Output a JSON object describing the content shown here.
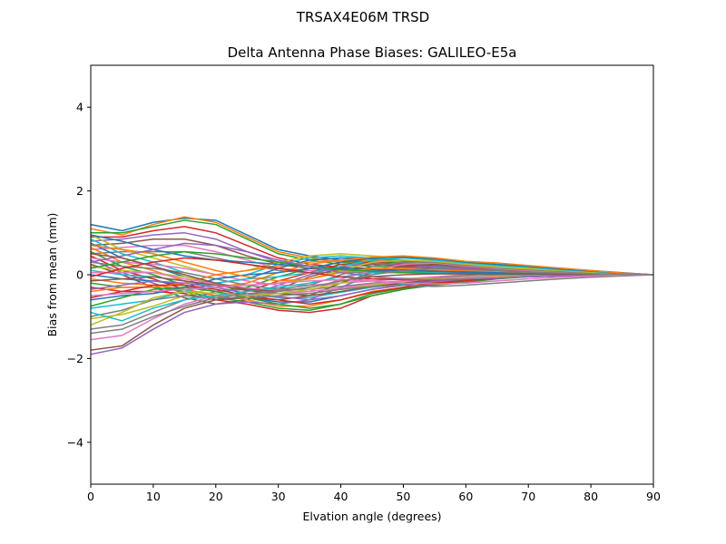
{
  "chart_data": {
    "type": "line",
    "suptitle": "TRSAX4E06M      TRSD",
    "title": "Delta Antenna Phase Biases: GALILEO-E5a",
    "xlabel": "Elvation angle (degrees)",
    "ylabel": "Bias from mean (mm)",
    "xlim": [
      0,
      90
    ],
    "ylim": [
      -5,
      5
    ],
    "xticks": [
      0,
      10,
      20,
      30,
      40,
      50,
      60,
      70,
      80,
      90
    ],
    "yticks": [
      -4,
      -2,
      0,
      2,
      4
    ],
    "ytick_labels": [
      "−4",
      "−2",
      "0",
      "2",
      "4"
    ],
    "grid": false,
    "legend": "none",
    "colors": [
      "#1f77b4",
      "#ff7f0e",
      "#2ca02c",
      "#d62728",
      "#9467bd",
      "#8c564b",
      "#e377c2",
      "#7f7f7f",
      "#bcbd22",
      "#17becf"
    ],
    "x": [
      0,
      5,
      10,
      15,
      20,
      25,
      30,
      35,
      40,
      45,
      50,
      55,
      60,
      65,
      70,
      75,
      80,
      85,
      90
    ],
    "series": [
      {
        "values": [
          1.2,
          1.05,
          1.25,
          1.35,
          1.3,
          0.95,
          0.6,
          0.45,
          0.35,
          0.3,
          0.25,
          0.2,
          0.15,
          0.2,
          0.2,
          0.15,
          0.1,
          0.05,
          0.0
        ]
      },
      {
        "values": [
          1.1,
          0.95,
          1.2,
          1.38,
          1.25,
          0.9,
          0.55,
          0.4,
          0.3,
          0.28,
          0.22,
          0.18,
          0.15,
          0.18,
          0.15,
          0.12,
          0.08,
          0.04,
          0.0
        ]
      },
      {
        "values": [
          1.0,
          1.0,
          1.15,
          1.3,
          1.2,
          0.85,
          0.5,
          0.35,
          0.25,
          0.2,
          0.18,
          0.15,
          0.12,
          0.15,
          0.15,
          0.1,
          0.08,
          0.03,
          0.0
        ]
      },
      {
        "values": [
          0.9,
          0.9,
          1.05,
          1.15,
          1.0,
          0.7,
          0.4,
          0.25,
          0.18,
          0.15,
          0.12,
          0.1,
          0.1,
          0.12,
          0.12,
          0.08,
          0.05,
          0.02,
          0.0
        ]
      },
      {
        "values": [
          0.8,
          0.85,
          0.95,
          1.0,
          0.85,
          0.55,
          0.3,
          0.2,
          0.15,
          0.12,
          0.1,
          0.08,
          0.08,
          0.1,
          0.1,
          0.07,
          0.05,
          0.02,
          0.0
        ]
      },
      {
        "values": [
          0.7,
          0.75,
          0.85,
          0.85,
          0.7,
          0.45,
          0.25,
          0.15,
          0.1,
          0.1,
          0.08,
          0.06,
          0.06,
          0.08,
          0.08,
          0.06,
          0.04,
          0.02,
          0.0
        ]
      },
      {
        "values": [
          0.6,
          0.65,
          0.7,
          0.7,
          0.55,
          0.35,
          0.15,
          0.1,
          0.08,
          0.08,
          0.06,
          0.05,
          0.05,
          0.06,
          0.06,
          0.05,
          0.03,
          0.01,
          0.0
        ]
      },
      {
        "values": [
          0.5,
          0.55,
          0.55,
          0.55,
          0.4,
          0.25,
          0.1,
          0.05,
          0.05,
          0.05,
          0.05,
          0.04,
          0.04,
          0.05,
          0.05,
          0.04,
          0.03,
          0.01,
          0.0
        ]
      },
      {
        "values": [
          0.95,
          0.6,
          0.4,
          0.2,
          0.0,
          0.1,
          0.3,
          0.45,
          0.5,
          0.45,
          0.4,
          0.35,
          0.25,
          0.2,
          0.15,
          0.1,
          0.08,
          0.03,
          0.0
        ]
      },
      {
        "values": [
          0.85,
          0.5,
          0.3,
          0.05,
          -0.1,
          0.0,
          0.25,
          0.4,
          0.45,
          0.4,
          0.35,
          0.3,
          0.22,
          0.18,
          0.12,
          0.08,
          0.06,
          0.02,
          0.0
        ]
      },
      {
        "values": [
          0.75,
          0.4,
          0.2,
          -0.05,
          -0.2,
          -0.1,
          0.15,
          0.35,
          0.4,
          0.38,
          0.32,
          0.28,
          0.2,
          0.15,
          0.1,
          0.07,
          0.05,
          0.02,
          0.0
        ]
      },
      {
        "values": [
          0.65,
          0.3,
          0.1,
          -0.15,
          -0.3,
          -0.2,
          0.05,
          0.25,
          0.35,
          0.35,
          0.3,
          0.25,
          0.18,
          0.12,
          0.08,
          0.06,
          0.04,
          0.02,
          0.0
        ]
      },
      {
        "values": [
          0.55,
          0.2,
          0.0,
          -0.25,
          -0.4,
          -0.3,
          -0.05,
          0.15,
          0.3,
          0.32,
          0.28,
          0.22,
          0.15,
          0.1,
          0.07,
          0.05,
          0.04,
          0.01,
          0.0
        ]
      },
      {
        "values": [
          0.45,
          0.1,
          -0.1,
          -0.35,
          -0.5,
          -0.4,
          -0.15,
          0.05,
          0.25,
          0.3,
          0.25,
          0.2,
          0.12,
          0.08,
          0.06,
          0.04,
          0.03,
          0.01,
          0.0
        ]
      },
      {
        "values": [
          0.35,
          0.05,
          -0.2,
          -0.45,
          -0.6,
          -0.5,
          -0.25,
          0.0,
          0.2,
          0.28,
          0.22,
          0.18,
          0.1,
          0.06,
          0.05,
          0.04,
          0.02,
          0.01,
          0.0
        ]
      },
      {
        "values": [
          0.25,
          0.0,
          -0.3,
          -0.55,
          -0.7,
          -0.6,
          -0.35,
          -0.05,
          0.15,
          0.25,
          0.2,
          0.15,
          0.08,
          0.05,
          0.04,
          0.03,
          0.02,
          0.01,
          0.0
        ]
      },
      {
        "values": [
          0.4,
          0.3,
          0.25,
          0.15,
          0.0,
          -0.15,
          -0.25,
          -0.25,
          -0.2,
          -0.15,
          -0.1,
          -0.05,
          0.0,
          0.05,
          0.08,
          0.06,
          0.04,
          0.02,
          0.0
        ]
      },
      {
        "values": [
          0.3,
          0.2,
          0.15,
          0.05,
          -0.1,
          -0.25,
          -0.35,
          -0.35,
          -0.28,
          -0.2,
          -0.15,
          -0.08,
          -0.02,
          0.03,
          0.06,
          0.05,
          0.03,
          0.01,
          0.0
        ]
      },
      {
        "values": [
          0.2,
          0.1,
          0.05,
          -0.05,
          -0.2,
          -0.35,
          -0.45,
          -0.45,
          -0.35,
          -0.25,
          -0.18,
          -0.1,
          -0.05,
          0.02,
          0.05,
          0.04,
          0.03,
          0.01,
          0.0
        ]
      },
      {
        "values": [
          0.1,
          0.0,
          -0.05,
          -0.15,
          -0.3,
          -0.45,
          -0.55,
          -0.55,
          -0.42,
          -0.3,
          -0.22,
          -0.12,
          -0.06,
          0.0,
          0.04,
          0.03,
          0.02,
          0.01,
          0.0
        ]
      },
      {
        "values": [
          0.0,
          -0.1,
          -0.15,
          -0.25,
          -0.4,
          -0.55,
          -0.65,
          -0.65,
          -0.5,
          -0.35,
          -0.25,
          -0.15,
          -0.08,
          -0.02,
          0.02,
          0.02,
          0.02,
          0.01,
          0.0
        ]
      },
      {
        "values": [
          -0.1,
          -0.2,
          -0.25,
          -0.35,
          -0.5,
          -0.6,
          -0.75,
          -0.75,
          -0.6,
          -0.4,
          -0.3,
          -0.18,
          -0.1,
          -0.04,
          0.0,
          0.01,
          0.01,
          0.0,
          0.0
        ]
      },
      {
        "values": [
          -0.2,
          -0.3,
          -0.3,
          -0.4,
          -0.55,
          -0.65,
          -0.8,
          -0.85,
          -0.7,
          -0.45,
          -0.32,
          -0.2,
          -0.12,
          -0.06,
          -0.02,
          0.0,
          0.01,
          0.0,
          0.0
        ]
      },
      {
        "values": [
          -0.3,
          -0.4,
          -0.4,
          -0.45,
          -0.6,
          -0.7,
          -0.85,
          -0.9,
          -0.8,
          -0.5,
          -0.35,
          -0.22,
          -0.15,
          -0.08,
          -0.04,
          -0.01,
          0.0,
          0.0,
          0.0
        ]
      },
      {
        "values": [
          -1.9,
          -1.75,
          -1.3,
          -0.9,
          -0.7,
          -0.65,
          -0.7,
          -0.6,
          -0.3,
          0.0,
          0.15,
          0.2,
          0.15,
          0.1,
          0.08,
          0.05,
          0.03,
          0.01,
          0.0
        ]
      },
      {
        "values": [
          -1.8,
          -1.7,
          -1.2,
          -0.8,
          -0.6,
          -0.55,
          -0.6,
          -0.5,
          -0.2,
          0.05,
          0.2,
          0.25,
          0.18,
          0.12,
          0.08,
          0.05,
          0.03,
          0.01,
          0.0
        ]
      },
      {
        "values": [
          -1.55,
          -1.45,
          -1.05,
          -0.7,
          -0.5,
          -0.45,
          -0.45,
          -0.4,
          -0.1,
          0.1,
          0.25,
          0.28,
          0.2,
          0.14,
          0.1,
          0.06,
          0.04,
          0.02,
          0.0
        ]
      },
      {
        "values": [
          -1.3,
          -1.2,
          -0.9,
          -0.6,
          -0.4,
          -0.35,
          -0.35,
          -0.25,
          0.0,
          0.2,
          0.3,
          0.3,
          0.22,
          0.16,
          0.12,
          0.08,
          0.05,
          0.02,
          0.0
        ]
      },
      {
        "values": [
          -1.05,
          -0.95,
          -0.75,
          -0.5,
          -0.3,
          -0.25,
          -0.2,
          -0.1,
          0.1,
          0.3,
          0.35,
          0.32,
          0.25,
          0.18,
          0.14,
          0.1,
          0.06,
          0.03,
          0.0
        ]
      },
      {
        "values": [
          -0.8,
          -0.7,
          -0.6,
          -0.4,
          -0.2,
          -0.1,
          -0.05,
          0.05,
          0.2,
          0.35,
          0.4,
          0.35,
          0.28,
          0.22,
          0.18,
          0.12,
          0.08,
          0.03,
          0.0
        ]
      },
      {
        "values": [
          -0.6,
          -0.5,
          -0.45,
          -0.3,
          -0.1,
          0.0,
          0.05,
          0.15,
          0.3,
          0.4,
          0.42,
          0.38,
          0.3,
          0.25,
          0.2,
          0.14,
          0.09,
          0.04,
          0.0
        ]
      },
      {
        "values": [
          -0.4,
          -0.3,
          -0.3,
          -0.2,
          0.0,
          0.1,
          0.2,
          0.3,
          0.35,
          0.42,
          0.45,
          0.4,
          0.32,
          0.28,
          0.22,
          0.16,
          0.1,
          0.04,
          0.0
        ]
      },
      {
        "values": [
          -0.75,
          -0.55,
          -0.35,
          -0.3,
          -0.4,
          -0.55,
          -0.7,
          -0.8,
          -0.7,
          -0.5,
          -0.35,
          -0.25,
          -0.18,
          -0.1,
          -0.05,
          -0.02,
          0.0,
          0.0,
          0.0
        ]
      },
      {
        "values": [
          -0.55,
          -0.4,
          -0.25,
          -0.25,
          -0.35,
          -0.5,
          -0.6,
          -0.7,
          -0.6,
          -0.42,
          -0.3,
          -0.2,
          -0.14,
          -0.08,
          -0.04,
          -0.02,
          0.0,
          0.0,
          0.0
        ]
      },
      {
        "values": [
          -0.35,
          -0.25,
          -0.15,
          -0.2,
          -0.3,
          -0.45,
          -0.52,
          -0.6,
          -0.5,
          -0.35,
          -0.25,
          -0.16,
          -0.1,
          -0.06,
          -0.03,
          -0.01,
          0.0,
          0.0,
          0.0
        ]
      },
      {
        "values": [
          -0.15,
          -0.1,
          -0.05,
          -0.15,
          -0.25,
          -0.38,
          -0.45,
          -0.5,
          -0.4,
          -0.28,
          -0.2,
          -0.12,
          -0.08,
          -0.04,
          -0.02,
          -0.01,
          0.0,
          0.0,
          0.0
        ]
      },
      {
        "values": [
          0.05,
          0.05,
          0.05,
          -0.1,
          -0.22,
          -0.32,
          -0.38,
          -0.4,
          -0.32,
          -0.22,
          -0.15,
          -0.1,
          -0.06,
          -0.03,
          -0.01,
          0.0,
          0.0,
          0.0,
          0.0
        ]
      },
      {
        "values": [
          -1.0,
          -0.85,
          -0.6,
          -0.5,
          -0.55,
          -0.55,
          -0.5,
          -0.45,
          -0.35,
          -0.28,
          -0.25,
          -0.28,
          -0.25,
          -0.2,
          -0.15,
          -0.1,
          -0.06,
          -0.03,
          0.0
        ]
      },
      {
        "values": [
          -1.2,
          -0.9,
          -0.55,
          -0.4,
          -0.45,
          -0.5,
          -0.45,
          -0.35,
          -0.2,
          -0.1,
          -0.08,
          -0.1,
          -0.08,
          -0.06,
          -0.04,
          -0.02,
          -0.01,
          0.0,
          0.0
        ]
      },
      {
        "values": [
          -0.9,
          -1.1,
          -0.8,
          -0.6,
          -0.5,
          -0.4,
          -0.3,
          -0.2,
          -0.05,
          0.05,
          0.08,
          0.05,
          0.02,
          0.0,
          -0.02,
          -0.02,
          -0.01,
          0.0,
          0.0
        ]
      },
      {
        "values": [
          0.95,
          0.8,
          0.6,
          0.45,
          0.35,
          0.3,
          0.25,
          0.2,
          0.15,
          0.12,
          0.1,
          0.08,
          0.06,
          0.05,
          0.04,
          0.03,
          0.02,
          0.01,
          0.0
        ]
      },
      {
        "values": [
          0.7,
          0.6,
          0.5,
          0.3,
          0.1,
          -0.05,
          -0.15,
          -0.1,
          0.05,
          0.15,
          0.15,
          0.12,
          0.1,
          0.08,
          0.06,
          0.04,
          0.02,
          0.01,
          0.0
        ]
      },
      {
        "values": [
          0.15,
          0.3,
          0.45,
          0.55,
          0.5,
          0.4,
          0.3,
          0.2,
          0.12,
          0.08,
          0.05,
          0.03,
          0.02,
          0.02,
          0.02,
          0.02,
          0.01,
          0.0,
          0.0
        ]
      },
      {
        "values": [
          -0.05,
          0.15,
          0.3,
          0.4,
          0.35,
          0.25,
          0.15,
          0.05,
          -0.05,
          -0.1,
          -0.12,
          -0.12,
          -0.1,
          -0.08,
          -0.05,
          -0.03,
          -0.02,
          -0.01,
          0.0
        ]
      },
      {
        "values": [
          0.3,
          0.45,
          0.6,
          0.75,
          0.7,
          0.55,
          0.35,
          0.2,
          0.05,
          -0.05,
          -0.1,
          -0.12,
          -0.1,
          -0.08,
          -0.05,
          -0.03,
          -0.02,
          -0.01,
          0.0
        ]
      },
      {
        "values": [
          0.5,
          0.4,
          0.2,
          0.0,
          -0.2,
          -0.35,
          -0.4,
          -0.3,
          -0.15,
          -0.05,
          0.0,
          0.02,
          0.02,
          0.02,
          0.02,
          0.01,
          0.01,
          0.0,
          0.0
        ]
      },
      {
        "values": [
          -0.5,
          -0.45,
          -0.4,
          -0.35,
          -0.3,
          -0.25,
          -0.2,
          -0.15,
          -0.12,
          -0.15,
          -0.2,
          -0.22,
          -0.2,
          -0.15,
          -0.1,
          -0.06,
          -0.03,
          -0.01,
          0.0
        ]
      },
      {
        "values": [
          -1.4,
          -1.3,
          -1.0,
          -0.75,
          -0.55,
          -0.45,
          -0.4,
          -0.3,
          -0.15,
          0.0,
          0.1,
          0.15,
          0.12,
          0.1,
          0.06,
          0.04,
          0.02,
          0.01,
          0.0
        ]
      }
    ]
  }
}
